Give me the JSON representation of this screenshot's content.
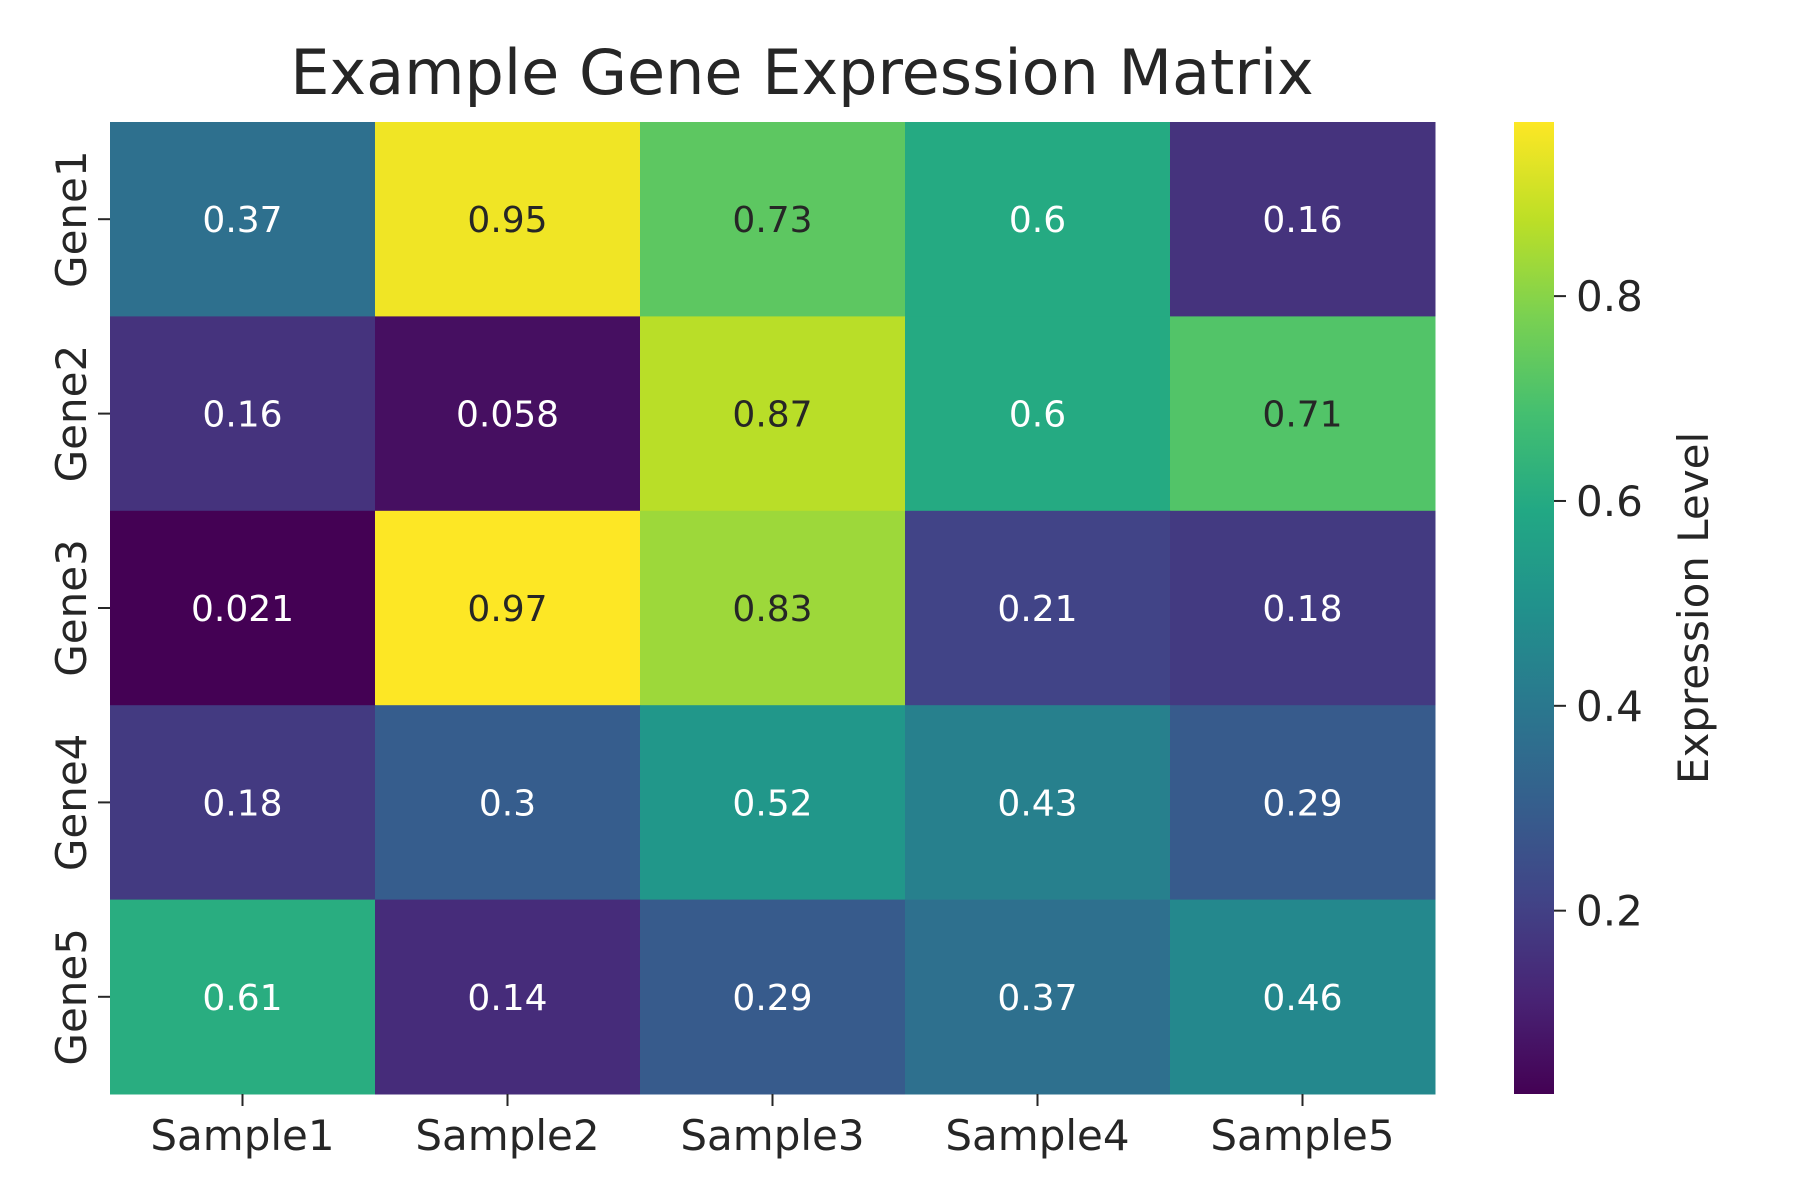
{
  "chart_data": {
    "type": "heatmap",
    "title": "Example Gene Expression Matrix",
    "x_labels": [
      "Sample1",
      "Sample2",
      "Sample3",
      "Sample4",
      "Sample5"
    ],
    "y_labels": [
      "Gene1",
      "Gene2",
      "Gene3",
      "Gene4",
      "Gene5"
    ],
    "values": [
      [
        0.37,
        0.95,
        0.73,
        0.6,
        0.16
      ],
      [
        0.16,
        0.058,
        0.87,
        0.6,
        0.71
      ],
      [
        0.021,
        0.97,
        0.83,
        0.21,
        0.18
      ],
      [
        0.18,
        0.3,
        0.52,
        0.43,
        0.29
      ],
      [
        0.61,
        0.14,
        0.29,
        0.37,
        0.46
      ]
    ],
    "value_labels": [
      [
        "0.37",
        "0.95",
        "0.73",
        "0.6",
        "0.16"
      ],
      [
        "0.16",
        "0.058",
        "0.87",
        "0.6",
        "0.71"
      ],
      [
        "0.021",
        "0.97",
        "0.83",
        "0.21",
        "0.18"
      ],
      [
        "0.18",
        "0.3",
        "0.52",
        "0.43",
        "0.29"
      ],
      [
        "0.61",
        "0.14",
        "0.29",
        "0.37",
        "0.46"
      ]
    ],
    "colormap": "viridis",
    "vmin": 0.021,
    "vmax": 0.97,
    "colorbar": {
      "label": "Expression Level",
      "ticks": [
        0.2,
        0.4,
        0.6,
        0.8
      ],
      "tick_labels": [
        "0.2",
        "0.4",
        "0.6",
        "0.8"
      ]
    },
    "colors": {
      "text_dark": "#262626",
      "text_light": "#ffffff"
    }
  }
}
